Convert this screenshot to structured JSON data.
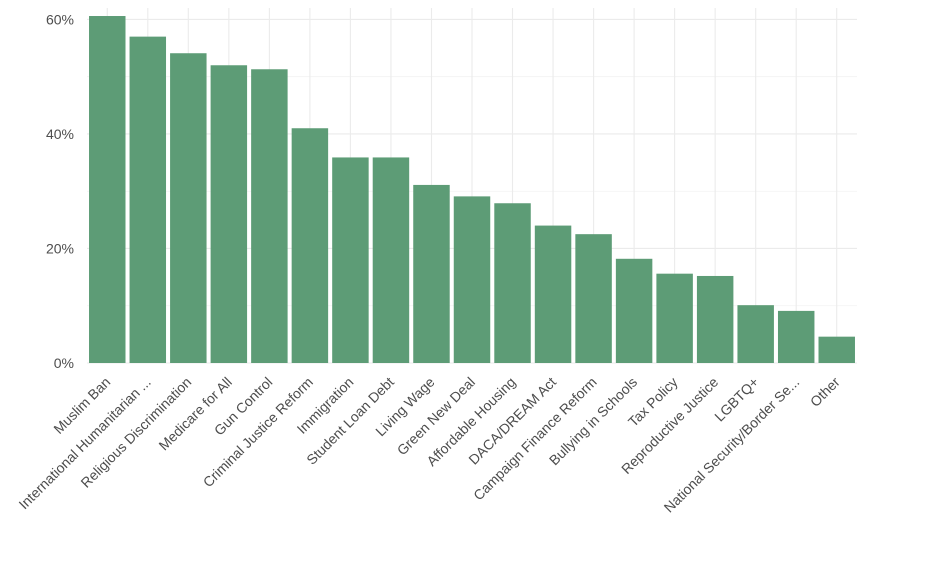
{
  "chart_data": {
    "type": "bar",
    "title": "",
    "xlabel": "",
    "ylabel": "",
    "ylim": [
      0,
      62
    ],
    "yticks": [
      0,
      20,
      40,
      60
    ],
    "ytick_labels": [
      "0%",
      "20%",
      "40%",
      "60%"
    ],
    "grid": true,
    "bar_color": "#5d9c76",
    "categories": [
      "Muslim Ban",
      "International Humanitarian ...",
      "Religious Discrimination",
      "Medicare for All",
      "Gun Control",
      "Criminal Justice Reform",
      "Immigration",
      "Student Loan Debt",
      "Living Wage",
      "Green New Deal",
      "Affordable Housing",
      "DACA/DREAM Act",
      "Campaign Finance Reform",
      "Bullying in Schools",
      "Tax Policy",
      "Reproductive Justice",
      "LGBTQ+",
      "National Security/Border Se...",
      "Other"
    ],
    "values": [
      60.6,
      57.0,
      54.1,
      52.0,
      51.3,
      41.0,
      35.9,
      35.9,
      31.1,
      29.1,
      27.9,
      24.0,
      22.5,
      18.2,
      15.6,
      15.2,
      10.1,
      9.1,
      4.6
    ]
  }
}
